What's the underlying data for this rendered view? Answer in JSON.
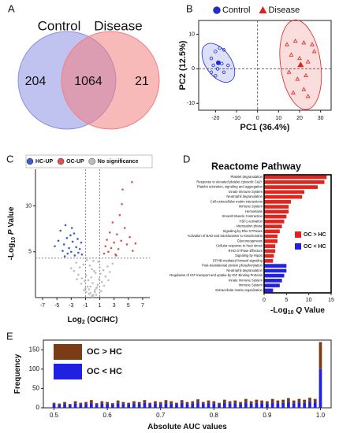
{
  "chart_data": [
    {
      "type": "venn",
      "panel": "A",
      "sets": [
        {
          "name": "Control",
          "color": "#8c8fe3"
        },
        {
          "name": "Disease",
          "color": "#f27f7f"
        }
      ],
      "values": [
        204,
        1064,
        21
      ]
    },
    {
      "type": "scatter",
      "panel": "B",
      "legend": "top",
      "xlabel": [
        {
          "text": "PC1 (36.4%)"
        }
      ],
      "ylabel": [
        {
          "text": "PC2 (12.5%)"
        }
      ],
      "xlim": [
        -28,
        35
      ],
      "xticks": [
        -20,
        -10,
        0,
        10,
        20,
        30
      ],
      "ylim": [
        -12,
        14
      ],
      "yticks": [
        -10,
        0,
        10
      ],
      "frame": true,
      "zero_lines": true,
      "ellipses": true,
      "series": [
        {
          "name": "Control",
          "color": "#1f2bd6",
          "marker": "circle",
          "x": [
            -22,
            -20,
            -18,
            -16,
            -21,
            -19,
            -17,
            -14,
            -22,
            -20,
            -16
          ],
          "y": [
            3,
            5,
            6,
            5.5,
            1,
            0,
            1.5,
            1,
            -1,
            -2,
            -1
          ]
        },
        {
          "name": "Disease",
          "color": "#e0201c",
          "marker": "triangle",
          "x": [
            14,
            18,
            22,
            26,
            16,
            20,
            24,
            27,
            15,
            19,
            23,
            17,
            24,
            22
          ],
          "y": [
            7,
            8,
            7.5,
            7,
            4,
            3,
            2,
            5,
            -1,
            -3,
            -2,
            -7,
            -8,
            -6
          ]
        }
      ]
    },
    {
      "type": "scatter",
      "panel": "C",
      "legend": "top",
      "xlabel": [
        {
          "text": "Log"
        },
        {
          "text": "2",
          "sub": true
        },
        {
          "text": " (OC/HC)"
        }
      ],
      "ylabel": [
        {
          "text": "-Log"
        },
        {
          "text": "10",
          "sub": true
        },
        {
          "text": " P",
          "italic": true
        },
        {
          "text": " Value"
        }
      ],
      "xlim": [
        -8,
        8
      ],
      "xticks": [
        -7,
        -5,
        -3,
        -1,
        1,
        3,
        5,
        7
      ],
      "ylim": [
        0,
        14
      ],
      "yticks": [
        5,
        10
      ],
      "threshold_x": [
        -1,
        1
      ],
      "threshold_y": [
        4.3
      ],
      "series": [
        {
          "name": "HC-UP",
          "color": "#3a5fcd",
          "marker": "dot",
          "x": [
            -5.3,
            -4.8,
            -4.5,
            -4.2,
            -4.0,
            -3.8,
            -3.6,
            -3.5,
            -3.3,
            -3.1,
            -3.0,
            -2.8,
            -2.6,
            -2.5,
            -2.3,
            -2.1,
            -2.0,
            -1.8,
            -1.6,
            -1.5,
            -3.9,
            -2.9
          ],
          "y": [
            5.6,
            6.2,
            7.3,
            5.1,
            5.8,
            7.9,
            6.5,
            4.8,
            5.4,
            6.8,
            5.0,
            6.1,
            7.0,
            4.6,
            5.5,
            6.4,
            4.9,
            5.3,
            6.0,
            4.7,
            4.5,
            7.6
          ]
        },
        {
          "name": "OC-UP",
          "color": "#d9534f",
          "marker": "dot",
          "x": [
            1.6,
            1.8,
            2.0,
            2.2,
            2.4,
            2.6,
            2.8,
            3.0,
            3.2,
            3.4,
            3.6,
            3.8,
            4.0,
            4.2,
            4.5,
            4.8,
            5.2,
            5.6,
            6.0,
            4.1,
            5.5,
            3.3
          ],
          "y": [
            4.8,
            5.6,
            6.3,
            5.0,
            7.1,
            5.4,
            8.2,
            6.0,
            4.7,
            6.9,
            5.3,
            9.0,
            6.2,
            11.8,
            7.6,
            5.8,
            6.6,
            5.1,
            5.9,
            10.2,
            12.6,
            4.6
          ]
        },
        {
          "name": "No significance",
          "color": "#bdbdbd",
          "marker": "dot",
          "x": [
            -3.0,
            -2.6,
            -2.3,
            -2.0,
            -1.8,
            -1.5,
            -1.3,
            -1.1,
            -0.9,
            -0.7,
            -0.5,
            -0.3,
            -0.1,
            0.1,
            0.3,
            0.5,
            0.7,
            0.9,
            1.1,
            1.3,
            1.5,
            1.8,
            2.1,
            2.4,
            2.8,
            -0.8,
            -0.4,
            0.0,
            0.4,
            0.8,
            -1.2,
            1.2,
            -0.6,
            0.6,
            -0.2,
            0.2,
            -1.6,
            1.6,
            -2.2,
            2.2,
            -0.1,
            0.1,
            -0.5,
            0.5,
            -1.0,
            1.0,
            -0.3,
            0.3,
            0.0,
            -0.9
          ],
          "y": [
            3.2,
            2.9,
            3.8,
            2.5,
            3.3,
            2.1,
            3.6,
            1.8,
            2.4,
            1.2,
            0.9,
            0.5,
            0.2,
            0.3,
            0.6,
            1.0,
            1.4,
            2.0,
            2.6,
            1.7,
            3.0,
            2.3,
            3.4,
            2.8,
            3.7,
            4.1,
            3.5,
            1.6,
            2.7,
            3.9,
            0.8,
            0.7,
            1.9,
            1.1,
            2.2,
            2.9,
            1.5,
            1.3,
            2.0,
            1.9,
            3.1,
            4.0,
            0.4,
            0.3,
            1.0,
            3.3,
            1.2,
            0.8,
            0.1,
            0.6
          ]
        }
      ]
    },
    {
      "type": "hbar",
      "panel": "D",
      "title": "Reactome Pathway",
      "legend": "right",
      "xlabel": [
        {
          "text": "-Log"
        },
        {
          "text": "10",
          "sub": true
        },
        {
          "text": " Q",
          "italic": true
        },
        {
          "text": " Value"
        }
      ],
      "xlim": [
        0,
        15
      ],
      "xticks": [
        0,
        5,
        10,
        15
      ],
      "categories": [
        "Platelet degranulation",
        "Response to elevated platelet cytosolic Ca2+",
        "Platelet activation, signaling and aggregation",
        "Innate Immune System",
        "Neutrophil degranulation",
        "Cell-extracellular matrix interactions",
        "Immune System",
        "Hemostasis",
        "Smooth Muscle Contraction",
        "HSF1 activation",
        "Attenuation phase",
        "Signaling by Rho GTPases",
        "Activation of BAD and translocation to mitochondria",
        "Gluconeogenesis",
        "Cellular response to heat stress",
        "RHO GTPase Effectors",
        "Signaling by Hippo",
        "EPHB-mediated forward signaling",
        "Post-translational protein phosphorylation",
        "Neutrophil degranulation",
        "Regulation of IGF transport and uptake by IGF Binding Proteins",
        "Innate Immune System",
        "Immune System",
        "Extracellular matrix organization"
      ],
      "series": [
        {
          "name": "OC > HC",
          "color": "#e3241d",
          "values": [
            14,
            13.5,
            12,
            9,
            8.5,
            6,
            5.5,
            5.5,
            5,
            4.5,
            4,
            3.5,
            3,
            3,
            2.5,
            2.5,
            2.2,
            2,
            null,
            null,
            null,
            null,
            null,
            null
          ]
        },
        {
          "name": "OC < HC",
          "color": "#2222dd",
          "values": [
            null,
            null,
            null,
            null,
            null,
            null,
            null,
            null,
            null,
            null,
            null,
            null,
            null,
            null,
            null,
            null,
            null,
            null,
            5,
            5,
            4.5,
            4,
            3.5,
            2
          ]
        }
      ]
    },
    {
      "type": "stackedbar",
      "panel": "E",
      "legend": "top-left",
      "xlabel": [
        {
          "text": "Absolute AUC values"
        }
      ],
      "ylabel": [
        {
          "text": "Frequency"
        }
      ],
      "xlim": [
        0.48,
        1.02
      ],
      "xticks": [
        0.5,
        0.6,
        0.7,
        0.8,
        0.9,
        {
          "value": 1,
          "label": "1.0"
        }
      ],
      "ylim": [
        0,
        175
      ],
      "yticks": [
        0,
        50,
        100,
        150
      ],
      "x": [
        0.5,
        0.51,
        0.52,
        0.53,
        0.54,
        0.55,
        0.56,
        0.57,
        0.58,
        0.59,
        0.6,
        0.61,
        0.62,
        0.63,
        0.64,
        0.65,
        0.66,
        0.67,
        0.68,
        0.69,
        0.7,
        0.71,
        0.72,
        0.73,
        0.74,
        0.75,
        0.76,
        0.77,
        0.78,
        0.79,
        0.8,
        0.81,
        0.82,
        0.83,
        0.84,
        0.85,
        0.86,
        0.87,
        0.88,
        0.89,
        0.9,
        0.91,
        0.92,
        0.93,
        0.94,
        0.95,
        0.96,
        0.97,
        0.98,
        0.99,
        1.0
      ],
      "series": [
        {
          "name": "OC > HC",
          "color": "#7a3c14",
          "values": [
            4,
            3,
            5,
            3,
            6,
            4,
            5,
            8,
            4,
            6,
            5,
            3,
            7,
            5,
            4,
            6,
            5,
            7,
            4,
            6,
            5,
            8,
            6,
            4,
            7,
            5,
            6,
            8,
            5,
            7,
            6,
            4,
            8,
            6,
            7,
            5,
            9,
            6,
            8,
            7,
            6,
            9,
            7,
            8,
            10,
            7,
            9,
            8,
            10,
            9,
            70
          ]
        },
        {
          "name": "OC < HC",
          "color": "#2020e0",
          "values": [
            9,
            8,
            10,
            7,
            11,
            9,
            10,
            12,
            8,
            11,
            10,
            9,
            12,
            10,
            9,
            11,
            10,
            13,
            9,
            11,
            10,
            12,
            11,
            9,
            13,
            10,
            11,
            14,
            10,
            12,
            11,
            9,
            13,
            11,
            12,
            10,
            14,
            11,
            13,
            12,
            11,
            14,
            12,
            13,
            15,
            12,
            14,
            13,
            16,
            14,
            100
          ]
        }
      ]
    }
  ]
}
